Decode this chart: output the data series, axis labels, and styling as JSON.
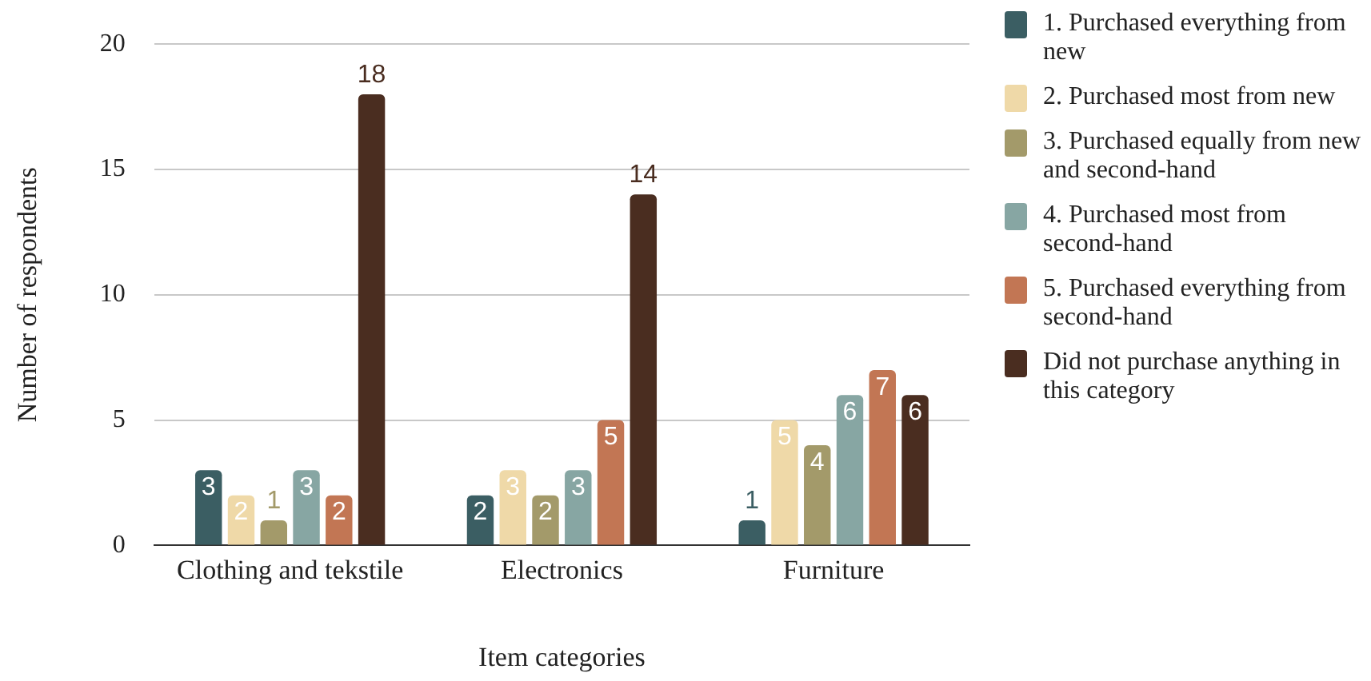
{
  "chart_data": {
    "type": "bar",
    "xlabel": "Item categories",
    "ylabel": "Number of respondents",
    "categories": [
      "Clothing and tekstile",
      "Electronics",
      "Furniture"
    ],
    "series": [
      {
        "name": "1. Purchased everything from new",
        "color": "#3b5e63",
        "values": [
          3,
          2,
          1
        ]
      },
      {
        "name": "2. Purchased most from new",
        "color": "#efd9a8",
        "values": [
          2,
          3,
          5
        ]
      },
      {
        "name": "3. Purchased equally from new and second-hand",
        "color": "#a39a6a",
        "values": [
          1,
          2,
          4
        ]
      },
      {
        "name": "4. Purchased most from second-hand",
        "color": "#87a6a3",
        "values": [
          3,
          3,
          6
        ]
      },
      {
        "name": "5. Purchased everything from second-hand",
        "color": "#c27654",
        "values": [
          2,
          5,
          7
        ]
      },
      {
        "name": "Did not purchase anything in this category",
        "color": "#4a2d20",
        "values": [
          18,
          14,
          6
        ]
      }
    ],
    "ylim": [
      0,
      20
    ],
    "yticks": [
      0,
      5,
      10,
      15,
      20
    ],
    "grid": "y",
    "legend": "right",
    "data_labels": true
  }
}
